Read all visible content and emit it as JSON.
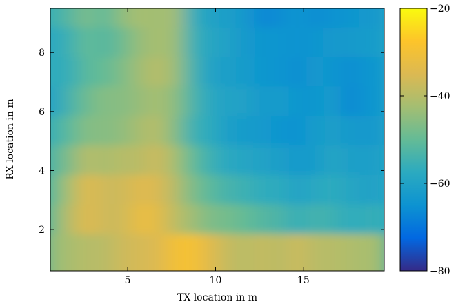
{
  "chart_data": {
    "type": "heatmap",
    "title": "",
    "xlabel": "TX location in m",
    "ylabel": "RX location in m",
    "xlim": [
      0.6,
      19.6
    ],
    "ylim": [
      0.6,
      9.5
    ],
    "xticks": [
      5,
      10,
      15
    ],
    "xtick_labels": [
      "5",
      "10",
      "15"
    ],
    "yticks": [
      2,
      4,
      6,
      8
    ],
    "ytick_labels": [
      "2",
      "4",
      "6",
      "8"
    ],
    "x": [
      1,
      2,
      3,
      4,
      5,
      6,
      7,
      8,
      9,
      10,
      11,
      12,
      13,
      14,
      15,
      16,
      17,
      18,
      19
    ],
    "y": [
      9,
      8,
      7,
      6,
      5,
      4,
      3,
      2,
      1
    ],
    "z": [
      [
        -55,
        -52,
        -47,
        -51,
        -45,
        -42,
        -43,
        -42,
        -56,
        -60,
        -61,
        -63,
        -67,
        -66,
        -64,
        -66,
        -65,
        -64,
        -63
      ],
      [
        -58,
        -55,
        -50,
        -52,
        -49,
        -44,
        -42,
        -43,
        -55,
        -59,
        -60,
        -63,
        -64,
        -64,
        -65,
        -64,
        -63,
        -63,
        -62
      ],
      [
        -57,
        -56,
        -51,
        -50,
        -47,
        -43,
        -40,
        -43,
        -54,
        -60,
        -61,
        -62,
        -64,
        -64,
        -66,
        -63,
        -64,
        -66,
        -64
      ],
      [
        -60,
        -54,
        -49,
        -46,
        -46,
        -44,
        -42,
        -45,
        -53,
        -58,
        -60,
        -60,
        -63,
        -62,
        -64,
        -64,
        -62,
        -67,
        -64
      ],
      [
        -55,
        -51,
        -46,
        -46,
        -45,
        -42,
        -40,
        -46,
        -55,
        -57,
        -61,
        -62,
        -63,
        -64,
        -65,
        -62,
        -61,
        -63,
        -63
      ],
      [
        -52,
        -47,
        -40,
        -42,
        -40,
        -40,
        -37,
        -42,
        -50,
        -55,
        -58,
        -59,
        -60,
        -61,
        -63,
        -62,
        -59,
        -61,
        -61
      ],
      [
        -50,
        -42,
        -34,
        -37,
        -37,
        -34,
        -35,
        -40,
        -47,
        -51,
        -54,
        -55,
        -57,
        -57,
        -60,
        -58,
        -57,
        -59,
        -60
      ],
      [
        -48,
        -40,
        -34,
        -37,
        -37,
        -32,
        -33,
        -39,
        -43,
        -47,
        -48,
        -50,
        -52,
        -53,
        -56,
        -54,
        -55,
        -57,
        -56
      ],
      [
        -44,
        -42,
        -40,
        -40,
        -37,
        -36,
        -35,
        -30,
        -29,
        -34,
        -38,
        -40,
        -38,
        -40,
        -37,
        -40,
        -40,
        -41,
        -42
      ]
    ],
    "colorbar": {
      "min": -80,
      "max": -20,
      "ticks": [
        -20,
        -40,
        -60,
        -80
      ],
      "tick_labels": [
        "−20",
        "−40",
        "−60",
        "−80"
      ],
      "colormap": "parula",
      "colors": [
        "#352a87",
        "#0268e1",
        "#0d93d1",
        "#2baac0",
        "#64bb96",
        "#a4be72",
        "#dcb952",
        "#fdc42a",
        "#f9fb0e"
      ]
    },
    "grid": false
  }
}
